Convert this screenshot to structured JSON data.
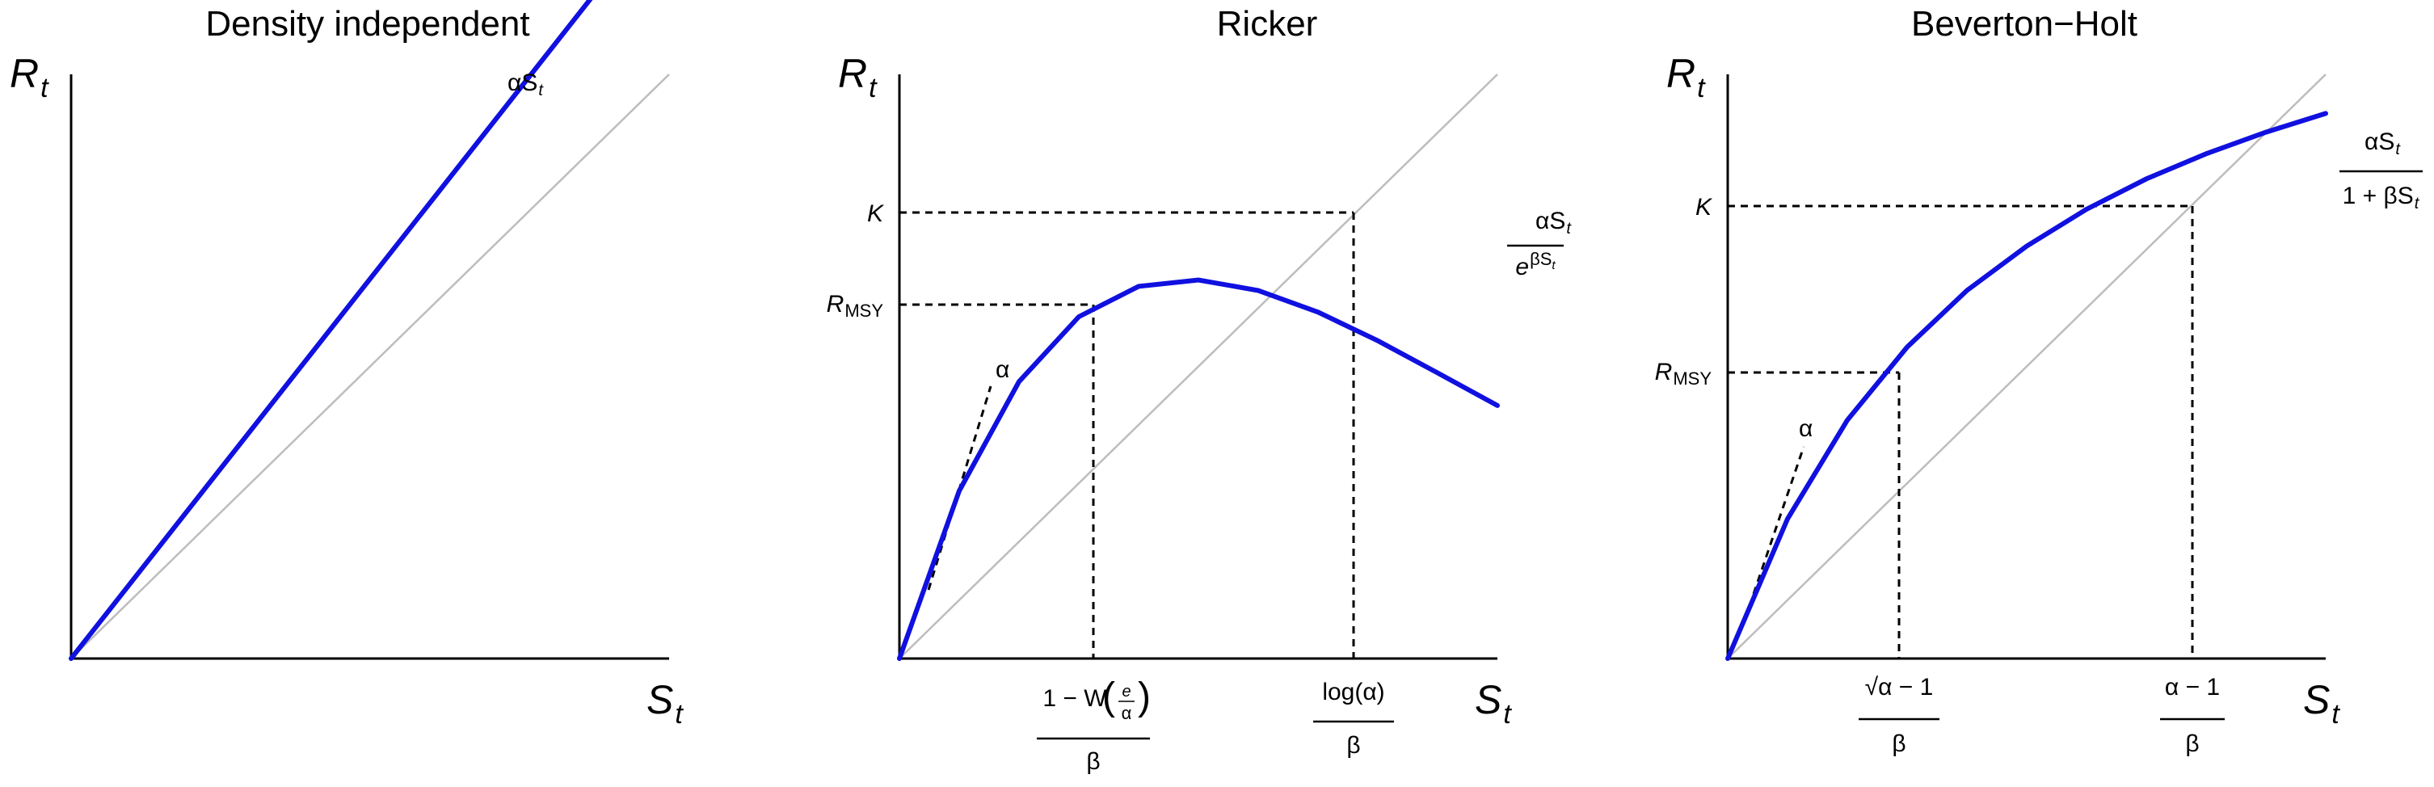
{
  "chart_data": [
    {
      "type": "line",
      "title": "Density independent",
      "xlabel": "S",
      "xlabel_sub": "t",
      "ylabel": "R",
      "ylabel_sub": "t",
      "series": [
        {
          "label": "αS",
          "label_sub": "t",
          "x": [
            0,
            0.3,
            0.6,
            0.9
          ],
          "y": [
            0,
            0.39,
            0.78,
            1.17
          ],
          "color": "#1010e0"
        },
        {
          "x": [
            0,
            1
          ],
          "y": [
            0,
            1
          ],
          "color": "#bdbdbd"
        }
      ],
      "xlim": [
        0,
        1
      ],
      "ylim": [
        0,
        1
      ],
      "grid": false
    },
    {
      "type": "line",
      "title": "Ricker",
      "xlabel": "S",
      "xlabel_sub": "t",
      "ylabel": "R",
      "ylabel_sub": "t",
      "series": [
        {
          "label_num": "αS",
          "label_num_sub": "t",
          "label_den_base": "e",
          "label_den_exp": "βS",
          "label_den_exp_sub": "t",
          "x": [
            0,
            0.1,
            0.2,
            0.3,
            0.4,
            0.5,
            0.6,
            0.7,
            0.8,
            0.9,
            1.0
          ],
          "y": [
            0,
            0.287,
            0.474,
            0.585,
            0.637,
            0.648,
            0.63,
            0.593,
            0.544,
            0.489,
            0.433
          ],
          "color": "#1010e0"
        },
        {
          "x": [
            0,
            1
          ],
          "y": [
            0,
            1
          ],
          "color": "#bdbdbd"
        }
      ],
      "xlim": [
        0,
        1
      ],
      "ylim": [
        0,
        1
      ],
      "annotations": {
        "K": "K",
        "rmsy": "R",
        "rmsy_sub": "MSY",
        "alpha": "α",
        "smsy_num": "1 − W",
        "smsy_e": "e",
        "smsy_alpha": "α",
        "smsy_den": "β",
        "seq_num": "log(α)",
        "seq_den": "β"
      },
      "grid": false
    },
    {
      "type": "line",
      "title": "Beverton−Holt",
      "xlabel": "S",
      "xlabel_sub": "t",
      "ylabel": "R",
      "ylabel_sub": "t",
      "series": [
        {
          "label_num": "αS",
          "label_num_sub": "t",
          "label_den": "1 + βS",
          "label_den_sub": "t",
          "x": [
            0,
            0.1,
            0.2,
            0.3,
            0.4,
            0.5,
            0.6,
            0.7,
            0.8,
            0.9,
            1.0
          ],
          "y": [
            0,
            0.239,
            0.408,
            0.533,
            0.63,
            0.706,
            0.769,
            0.821,
            0.864,
            0.901,
            0.933
          ],
          "color": "#1010e0"
        },
        {
          "x": [
            0,
            1
          ],
          "y": [
            0,
            1
          ],
          "color": "#bdbdbd"
        }
      ],
      "xlim": [
        0,
        1
      ],
      "ylim": [
        0,
        1
      ],
      "annotations": {
        "K": "K",
        "rmsy": "R",
        "rmsy_sub": "MSY",
        "alpha": "α",
        "smsy_num": "√α − 1",
        "smsy_den": "β",
        "seq_num": "α − 1",
        "seq_den": "β"
      },
      "grid": false
    }
  ]
}
